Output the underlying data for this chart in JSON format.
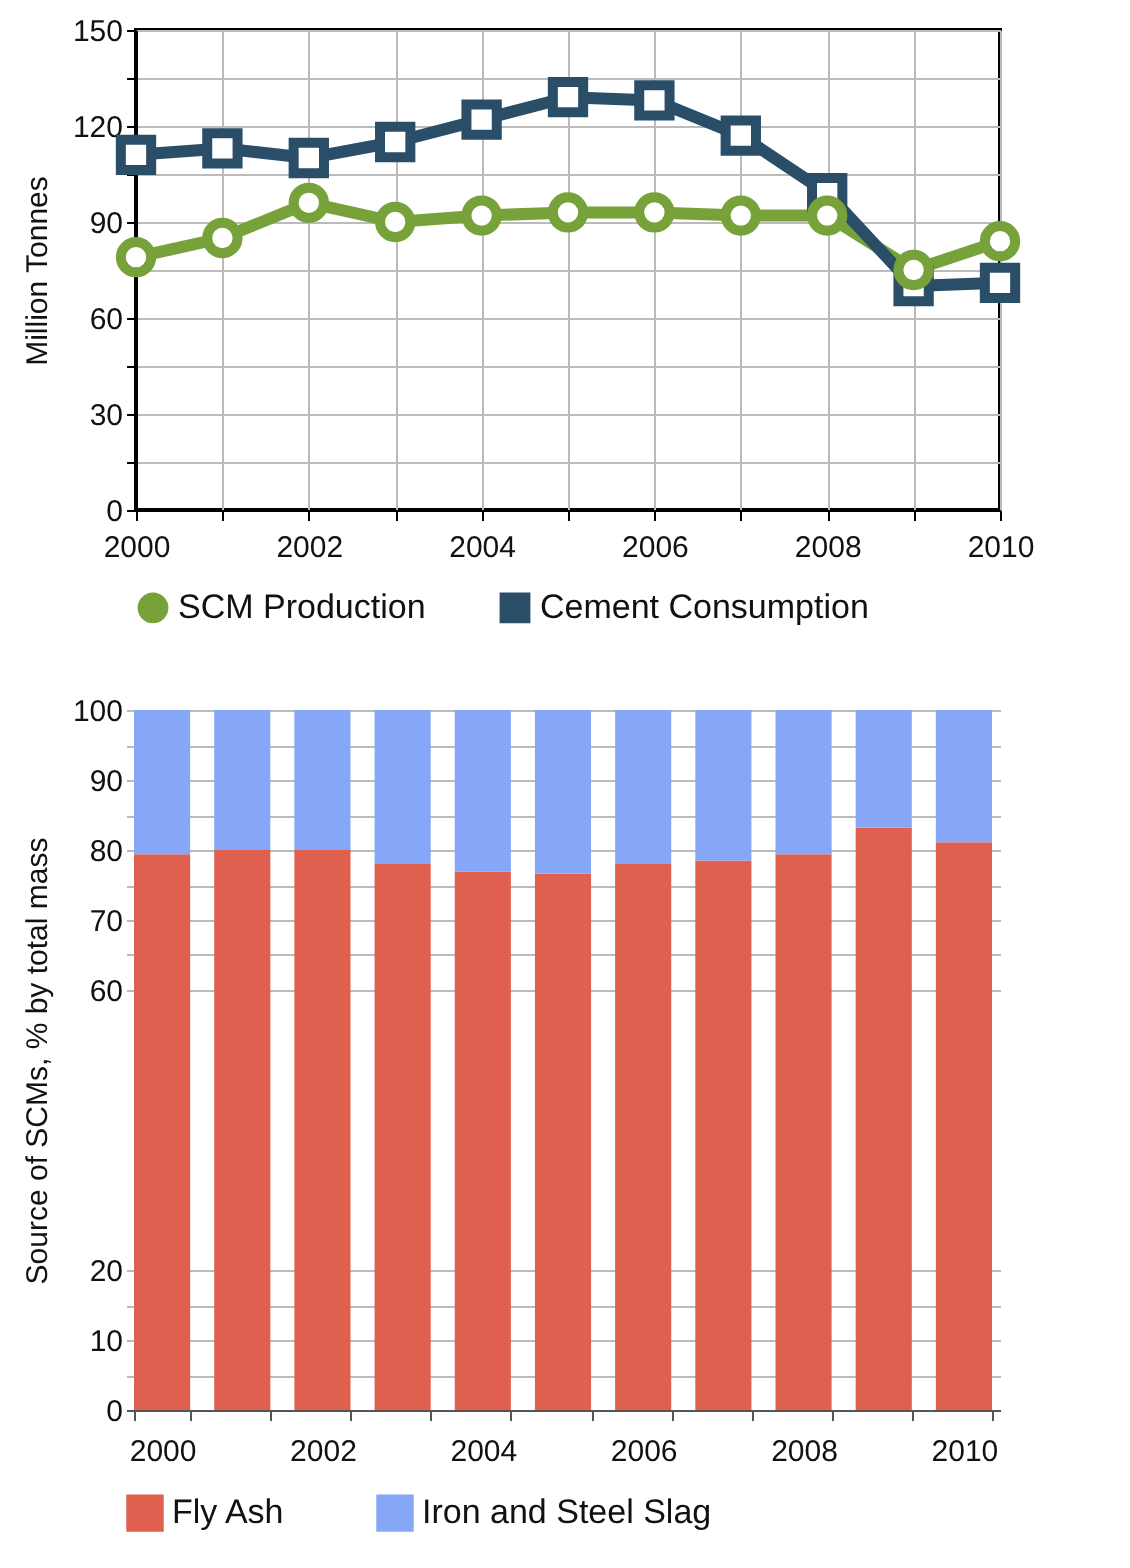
{
  "chart_data": [
    {
      "type": "line",
      "ylabel": "Million Tonnes",
      "x": [
        2000,
        2001,
        2002,
        2003,
        2004,
        2005,
        2006,
        2007,
        2008,
        2009,
        2010
      ],
      "xlim": [
        2000,
        2010
      ],
      "xticks": [
        2000,
        {
          "value": 2001,
          "label": null
        },
        2002,
        {
          "value": 2003,
          "label": null
        },
        2004,
        {
          "value": 2005,
          "label": null
        },
        2006,
        {
          "value": 2007,
          "label": null
        },
        2008,
        {
          "value": 2009,
          "label": null
        },
        2010
      ],
      "ylim": [
        0,
        150
      ],
      "yticks": [
        0,
        {
          "value": 15,
          "label": null
        },
        30,
        {
          "value": 45,
          "label": null
        },
        60,
        {
          "value": 75,
          "label": null
        },
        90,
        {
          "value": 105,
          "label": null
        },
        120,
        {
          "value": 135,
          "label": null
        },
        150
      ],
      "grid": true,
      "legend": "bottom",
      "line_style": "solid",
      "series": [
        {
          "name": "SCM Production",
          "color": "#77a23a",
          "marker": "circle",
          "values": [
            79,
            85,
            96,
            90,
            92,
            93,
            93,
            92,
            92,
            75,
            84
          ]
        },
        {
          "name": "Cement Consumption",
          "color": "#2a4d68",
          "marker": "square",
          "values": [
            111,
            113,
            110,
            115,
            122,
            129,
            128,
            117,
            99,
            70,
            71
          ]
        }
      ]
    },
    {
      "type": "bar",
      "stacked": true,
      "ylabel": "Source of SCMs, % by total mass",
      "categories": [
        "2000",
        null,
        "2002",
        null,
        "2004",
        null,
        "2006",
        null,
        "2008",
        null,
        "2010"
      ],
      "ylim": [
        0,
        100
      ],
      "yticks": [
        0,
        {
          "value": 5,
          "label": null
        },
        10,
        {
          "value": 15,
          "label": null
        },
        20,
        60,
        {
          "value": 65,
          "label": null
        },
        70,
        {
          "value": 75,
          "label": null
        },
        80,
        {
          "value": 85,
          "label": null
        },
        90,
        {
          "value": 95,
          "label": null
        },
        100
      ],
      "grid": "y",
      "legend": "bottom",
      "series": [
        {
          "name": "Fly Ash",
          "color": "#e06050",
          "values": [
            79.4,
            80,
            80,
            78,
            76.9,
            76.6,
            78,
            78.5,
            79.4,
            83.2,
            81.1
          ]
        },
        {
          "name": "Iron and Steel Slag",
          "color": "#86a6f7",
          "values": [
            20.6,
            20,
            20,
            22,
            23.1,
            23.4,
            22,
            21.5,
            20.6,
            16.8,
            18.9
          ]
        }
      ]
    }
  ]
}
